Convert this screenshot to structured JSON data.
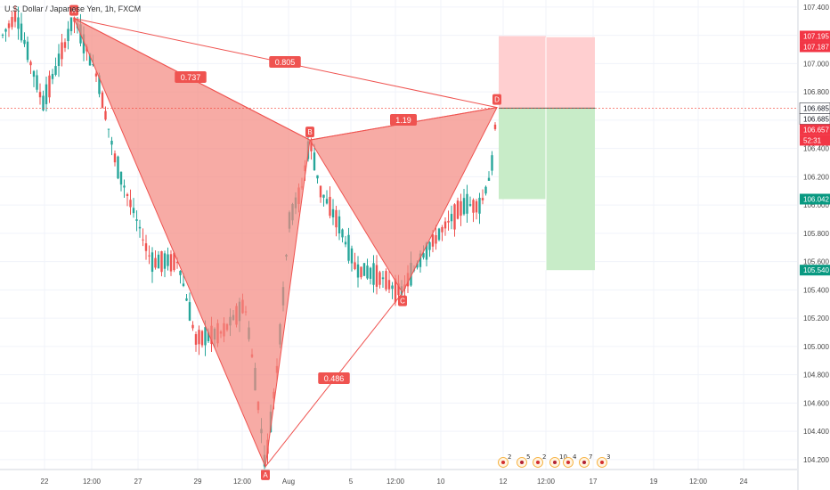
{
  "title": "U.S. Dollar / Japanese Yen, 1h, FXCM",
  "colors": {
    "bullish_candle": "#26a69a",
    "bearish_candle": "#ef5350",
    "pattern_fill": "#f4877f",
    "pattern_stroke": "#ef5350",
    "stop_zone": "#ffcfd0",
    "target_zone": "#c8ecc8",
    "target_label": "#089981",
    "stop_label": "#f23645",
    "price_line": "#f44336",
    "axis_text": "#4a4a4a",
    "grid": "#f0f3fa"
  },
  "chart_data": {
    "type": "candlestick",
    "symbol": "USDJPY",
    "timeframe": "1h",
    "source": "FXCM",
    "y_ticks": [
      "104.200",
      "104.400",
      "104.600",
      "104.800",
      "105.000",
      "105.200",
      "105.400",
      "105.600",
      "105.800",
      "106.000",
      "106.200",
      "106.400",
      "106.600",
      "106.800",
      "107.000",
      "107.200",
      "107.400"
    ],
    "ylim": [
      104.13,
      107.45
    ],
    "x_ticks": [
      "22",
      "12:00",
      "27",
      "29",
      "12:00",
      "Aug",
      "5",
      "12:00",
      "10",
      "12",
      "12:00",
      "17",
      "19",
      "12:00",
      "24"
    ],
    "pattern": {
      "name": "harmonic XABCD",
      "points": [
        {
          "label": "X",
          "price": 107.32
        },
        {
          "label": "A",
          "price": 104.15
        },
        {
          "label": "B",
          "price": 106.46
        },
        {
          "label": "C",
          "price": 105.38
        },
        {
          "label": "D",
          "price": 106.69
        }
      ],
      "ratios": [
        {
          "label": "0.737",
          "segment": "XA-B"
        },
        {
          "label": "0.805",
          "segment": "XA-D"
        },
        {
          "label": "1.19",
          "segment": "BC-D"
        },
        {
          "label": "0.486",
          "segment": "XC"
        }
      ]
    },
    "position": {
      "side": "short",
      "entry": 106.685,
      "stop_loss": 107.187,
      "stop_loss_upper": 107.195,
      "target_1": 106.042,
      "target_2": 105.54
    },
    "price_labels": [
      {
        "text": "107.195",
        "value": 107.195,
        "kind": "stop"
      },
      {
        "text": "107.187",
        "value": 107.187,
        "kind": "stop"
      },
      {
        "text": "106.685",
        "value": 106.685,
        "kind": "entry"
      },
      {
        "text": "106.685",
        "value": 106.685,
        "kind": "entry2"
      },
      {
        "text": "106.657",
        "value": 106.657,
        "kind": "last"
      },
      {
        "text": "52:31",
        "value": 106.61,
        "kind": "countdown"
      },
      {
        "text": "106.042",
        "value": 106.042,
        "kind": "target"
      },
      {
        "text": "105.540",
        "value": 105.54,
        "kind": "target"
      }
    ],
    "grid": true
  },
  "events": [
    "2",
    "5",
    "2",
    "10",
    "4",
    "7",
    "3"
  ]
}
